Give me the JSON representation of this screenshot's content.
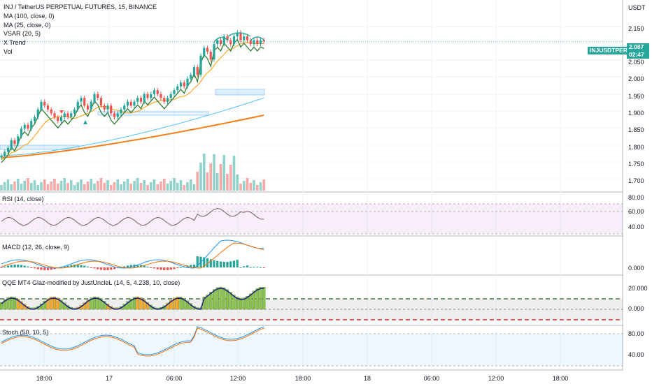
{
  "header": {
    "symbol_line": "INJ / TetherUS PERPETUAL FUTURES, 15, BINANCE",
    "indicators": [
      "MA (100, close, 0)",
      "MA (25, close, 0)",
      "VSAR (20, 5)",
      "X Trend",
      "Vol"
    ]
  },
  "price_axis": {
    "currency": "USDT",
    "ticks": [
      "2.150",
      "2.100",
      "2.050",
      "2.000",
      "1.950",
      "1.900",
      "1.850",
      "1.800",
      "1.750",
      "1.700"
    ]
  },
  "last_price": {
    "symbol": "INJUSDTPERP",
    "value": "2.087",
    "countdown": "02:47"
  },
  "panes": {
    "rsi": {
      "label": "RSI (14, close)",
      "ticks": [
        "80.00",
        "60.00",
        "40.00"
      ]
    },
    "macd": {
      "label": "MACD (12, 26, close, 9)",
      "ticks": [
        "0.000"
      ]
    },
    "qqe": {
      "label": "QQE MT4 Glaz-modified by JustUncleL (14, 5, 4.238, 10, close)",
      "ticks": [
        "20.000",
        "0.000"
      ]
    },
    "stoch": {
      "label": "Stoch (50, 10, 5)",
      "ticks": [
        "80.00",
        "40.00"
      ]
    }
  },
  "time_axis": {
    "labels": [
      "18:00",
      "17",
      "06:00",
      "12:00",
      "18:00",
      "18",
      "06:00",
      "12:00",
      "18:00"
    ]
  },
  "chart_data": {
    "type": "candlestick",
    "interval": "15m",
    "price_range": [
      1.69,
      2.18
    ],
    "candles_close": [
      1.79,
      1.8,
      1.81,
      1.83,
      1.82,
      1.84,
      1.86,
      1.87,
      1.86,
      1.88,
      1.89,
      1.91,
      1.93,
      1.92,
      1.91,
      1.9,
      1.89,
      1.88,
      1.89,
      1.9,
      1.89,
      1.9,
      1.91,
      1.93,
      1.94,
      1.92,
      1.91,
      1.93,
      1.95,
      1.94,
      1.92,
      1.91,
      1.92,
      1.9,
      1.89,
      1.9,
      1.91,
      1.92,
      1.93,
      1.92,
      1.93,
      1.94,
      1.93,
      1.95,
      1.94,
      1.95,
      1.96,
      1.95,
      1.94,
      1.93,
      1.94,
      1.95,
      1.96,
      1.97,
      1.98,
      1.97,
      1.99,
      2.0,
      2.02,
      2.0,
      2.05,
      2.07,
      2.06,
      2.04,
      2.08,
      2.09,
      2.08,
      2.1,
      2.09,
      2.08,
      2.1,
      2.11,
      2.09,
      2.1,
      2.09,
      2.08,
      2.09,
      2.08,
      2.09,
      2.087
    ],
    "ma_25_end": 2.05,
    "ma_100_end": 1.895,
    "rsi_levels": [
      80,
      60,
      40
    ],
    "qqe_levels": [
      10,
      0,
      -10
    ],
    "stoch_levels": [
      80,
      40
    ]
  }
}
